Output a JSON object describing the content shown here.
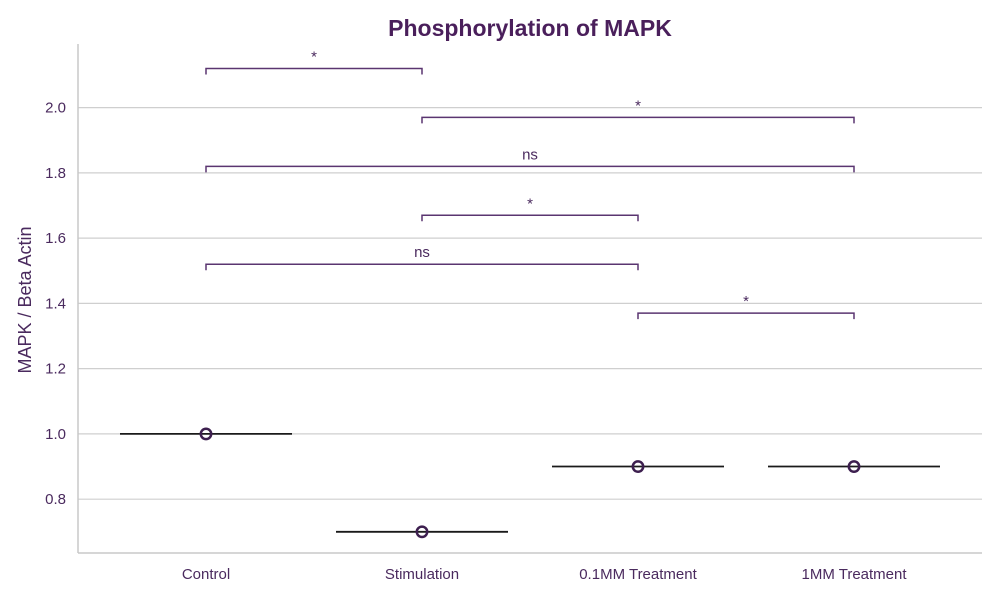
{
  "chart_data": {
    "type": "scatter",
    "title": "Phosphorylation of MAPK",
    "xlabel": "",
    "ylabel": "MAPK / Beta Actin",
    "categories": [
      "Control",
      "Stimulation",
      "0.1MM Treatment",
      "1MM Treatment"
    ],
    "values": [
      1.0,
      0.7,
      0.9,
      0.9
    ],
    "ylim": [
      0.635,
      2.195
    ],
    "yticks": [
      0.8,
      1.0,
      1.2,
      1.4,
      1.6,
      1.8,
      2.0
    ],
    "ytick_labels": [
      "0.8",
      "1.0",
      "1.2",
      "1.4",
      "1.6",
      "1.8",
      "2.0"
    ],
    "grid": "horizontal",
    "significance": [
      {
        "from": 0,
        "to": 1,
        "y": 2.12,
        "label": "*"
      },
      {
        "from": 1,
        "to": 3,
        "y": 1.97,
        "label": "*"
      },
      {
        "from": 0,
        "to": 3,
        "y": 1.82,
        "label": "ns"
      },
      {
        "from": 1,
        "to": 2,
        "y": 1.67,
        "label": "*"
      },
      {
        "from": 0,
        "to": 2,
        "y": 1.52,
        "label": "ns"
      },
      {
        "from": 2,
        "to": 3,
        "y": 1.37,
        "label": "*"
      }
    ],
    "colors": {
      "title": "#4a1f5b",
      "text": "#4a2a5e",
      "bracket": "#5a3570",
      "marker": "#3d1f4f",
      "mean_line": "#1a1a1a",
      "grid": "#cfcfcf",
      "axis": "#c8c8c8"
    }
  }
}
